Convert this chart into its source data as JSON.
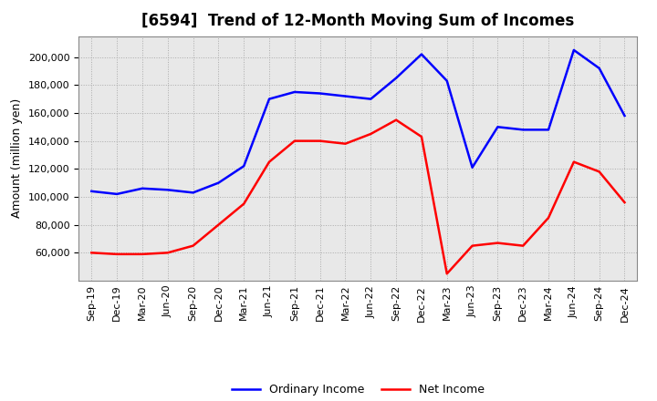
{
  "title": "[6594]  Trend of 12-Month Moving Sum of Incomes",
  "ylabel": "Amount (million yen)",
  "background_color": "#ffffff",
  "plot_bg_color": "#e8e8e8",
  "grid_color": "#aaaaaa",
  "line_color_ordinary": "#0000ff",
  "line_color_net": "#ff0000",
  "legend_ordinary": "Ordinary Income",
  "legend_net": "Net Income",
  "x_labels": [
    "Sep-19",
    "Dec-19",
    "Mar-20",
    "Jun-20",
    "Sep-20",
    "Dec-20",
    "Mar-21",
    "Jun-21",
    "Sep-21",
    "Dec-21",
    "Mar-22",
    "Jun-22",
    "Sep-22",
    "Dec-22",
    "Mar-23",
    "Jun-23",
    "Sep-23",
    "Dec-23",
    "Mar-24",
    "Jun-24",
    "Sep-24",
    "Dec-24"
  ],
  "ordinary_income": [
    104000,
    102000,
    106000,
    105000,
    103000,
    110000,
    122000,
    170000,
    175000,
    174000,
    172000,
    170000,
    185000,
    202000,
    183000,
    121000,
    150000,
    148000,
    148000,
    205000,
    192000,
    158000
  ],
  "net_income": [
    60000,
    59000,
    59000,
    60000,
    65000,
    80000,
    95000,
    125000,
    140000,
    140000,
    138000,
    145000,
    155000,
    143000,
    45000,
    65000,
    67000,
    65000,
    85000,
    125000,
    118000,
    96000
  ],
  "ylim": [
    40000,
    215000
  ],
  "yticks": [
    60000,
    80000,
    100000,
    120000,
    140000,
    160000,
    180000,
    200000
  ],
  "title_fontsize": 12,
  "axis_fontsize": 9,
  "tick_fontsize": 8,
  "legend_fontsize": 9,
  "line_width": 1.8
}
